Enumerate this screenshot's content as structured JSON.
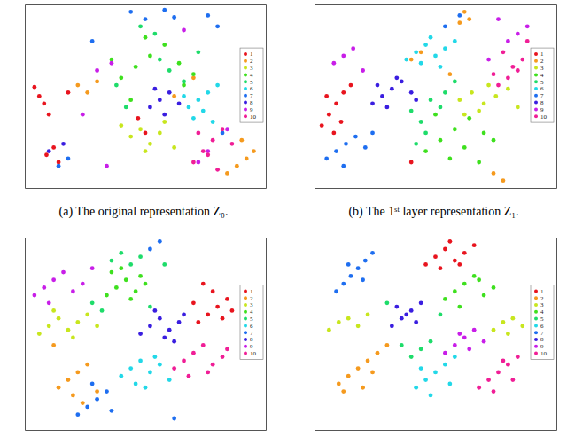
{
  "chart_data": [
    {
      "type": "scatter",
      "title": "(a) The original representation Z₀.",
      "xlim": [
        0,
        100
      ],
      "ylim": [
        0,
        100
      ],
      "tick_labels": false,
      "legend": "right",
      "series": [
        {
          "name": "1",
          "color": "#e8141e",
          "x": [
            4,
            6,
            8,
            10,
            12,
            9,
            14,
            47,
            50,
            18
          ],
          "values": [
            55,
            50,
            46,
            40,
            22,
            18,
            14,
            38,
            30,
            52
          ]
        },
        {
          "name": "2",
          "color": "#f59a1e",
          "x": [
            84,
            88,
            92,
            95,
            90,
            22,
            26,
            30,
            62,
            70
          ],
          "values": [
            8,
            12,
            16,
            20,
            26,
            56,
            52,
            58,
            50,
            60
          ]
        },
        {
          "name": "3",
          "color": "#c8e61e",
          "x": [
            44,
            48,
            52,
            56,
            50,
            58,
            62,
            40
          ],
          "values": [
            28,
            32,
            24,
            30,
            20,
            36,
            22,
            34
          ]
        },
        {
          "name": "4",
          "color": "#3ee01e",
          "x": [
            40,
            46,
            52,
            58,
            64,
            70,
            50,
            44,
            66,
            36
          ],
          "values": [
            60,
            66,
            72,
            78,
            68,
            62,
            82,
            48,
            56,
            70
          ]
        },
        {
          "name": "5",
          "color": "#1edc6a",
          "x": [
            48,
            54,
            60,
            66,
            38,
            42,
            72,
            56
          ],
          "values": [
            88,
            84,
            64,
            58,
            56,
            44,
            74,
            70
          ]
        },
        {
          "name": "6",
          "color": "#22d8e8",
          "x": [
            68,
            72,
            76,
            80,
            70,
            74,
            78,
            66
          ],
          "values": [
            44,
            48,
            52,
            56,
            38,
            42,
            36,
            50
          ]
        },
        {
          "name": "7",
          "color": "#1e6ef0",
          "x": [
            44,
            50,
            58,
            62,
            76,
            80,
            14,
            18,
            28,
            82
          ],
          "values": [
            96,
            92,
            97,
            93,
            94,
            88,
            12,
            16,
            80,
            30
          ]
        },
        {
          "name": "8",
          "color": "#3a1ee0",
          "x": [
            52,
            56,
            60,
            64,
            58,
            54,
            10,
            16
          ],
          "values": [
            44,
            48,
            52,
            46,
            40,
            54,
            20,
            24
          ]
        },
        {
          "name": "9",
          "color": "#c81ee8",
          "x": [
            30,
            36,
            84,
            72,
            76,
            24,
            66,
            34
          ],
          "values": [
            64,
            68,
            32,
            14,
            20,
            40,
            86,
            12
          ]
        },
        {
          "name": "10",
          "color": "#f01e96",
          "x": [
            70,
            74,
            78,
            82,
            72,
            80,
            76,
            86
          ],
          "values": [
            14,
            20,
            26,
            32,
            30,
            10,
            18,
            24
          ]
        }
      ]
    },
    {
      "type": "scatter",
      "title": "(b) The 1ˢᵗ layer representation Z₁.",
      "xlim": [
        0,
        100
      ],
      "ylim": [
        0,
        100
      ],
      "tick_labels": false,
      "legend": "right",
      "series": [
        {
          "name": "1",
          "color": "#e8141e",
          "x": [
            3,
            6,
            9,
            12,
            15,
            8,
            5,
            11,
            40
          ],
          "values": [
            34,
            40,
            46,
            52,
            56,
            30,
            50,
            36,
            14
          ]
        },
        {
          "name": "2",
          "color": "#f59a1e",
          "x": [
            60,
            62,
            64,
            40,
            44,
            78,
            74,
            56
          ],
          "values": [
            90,
            96,
            92,
            70,
            74,
            4,
            8,
            62
          ]
        },
        {
          "name": "3",
          "color": "#c8e61e",
          "x": [
            60,
            65,
            70,
            75,
            80,
            84,
            68,
            72,
            62
          ],
          "values": [
            48,
            52,
            46,
            50,
            54,
            44,
            42,
            56,
            40
          ]
        },
        {
          "name": "4",
          "color": "#3ee01e",
          "x": [
            46,
            52,
            58,
            64,
            70,
            56,
            62,
            50,
            68,
            74
          ],
          "values": [
            20,
            26,
            32,
            38,
            30,
            16,
            22,
            40,
            14,
            26
          ]
        },
        {
          "name": "5",
          "color": "#1edc6a",
          "x": [
            40,
            44,
            48,
            52,
            46,
            54,
            58,
            42
          ],
          "values": [
            42,
            36,
            48,
            44,
            30,
            52,
            58,
            24
          ]
        },
        {
          "name": "6",
          "color": "#22d8e8",
          "x": [
            38,
            42,
            46,
            50,
            54,
            58,
            44,
            52,
            48
          ],
          "values": [
            70,
            74,
            78,
            72,
            76,
            80,
            68,
            66,
            82
          ]
        },
        {
          "name": "7",
          "color": "#1e6ef0",
          "x": [
            5,
            9,
            13,
            17,
            21,
            24,
            60,
            54,
            12
          ],
          "values": [
            16,
            20,
            24,
            28,
            22,
            30,
            94,
            88,
            12
          ]
        },
        {
          "name": "8",
          "color": "#3a1ee0",
          "x": [
            24,
            28,
            32,
            36,
            40,
            42,
            30,
            34,
            26
          ],
          "values": [
            46,
            50,
            54,
            58,
            52,
            48,
            44,
            60,
            56
          ]
        },
        {
          "name": "9",
          "color": "#c81ee8",
          "x": [
            8,
            12,
            16,
            20,
            80,
            84,
            88,
            76,
            72
          ],
          "values": [
            68,
            72,
            76,
            64,
            80,
            84,
            88,
            92,
            70
          ]
        },
        {
          "name": "10",
          "color": "#f01e96",
          "x": [
            76,
            80,
            84,
            86,
            78,
            82,
            88,
            74
          ],
          "values": [
            56,
            60,
            64,
            70,
            74,
            66,
            80,
            62
          ]
        }
      ]
    },
    {
      "type": "scatter",
      "xlim": [
        0,
        100
      ],
      "ylim": [
        0,
        100
      ],
      "tick_labels": false,
      "legend": "right",
      "series": [
        {
          "name": "1",
          "color": "#e8141e",
          "x": [
            72,
            76,
            80,
            84,
            78,
            74,
            82,
            86,
            70
          ],
          "values": [
            56,
            60,
            64,
            68,
            72,
            76,
            58,
            62,
            66
          ]
        },
        {
          "name": "2",
          "color": "#f59a1e",
          "x": [
            14,
            18,
            22,
            26,
            30,
            20,
            12,
            24
          ],
          "values": [
            22,
            26,
            30,
            34,
            20,
            18,
            44,
            14
          ]
        },
        {
          "name": "3",
          "color": "#c8e61e",
          "x": [
            6,
            10,
            14,
            18,
            22,
            26,
            30,
            12,
            20
          ],
          "values": [
            50,
            54,
            58,
            52,
            56,
            60,
            54,
            62,
            48
          ]
        },
        {
          "name": "4",
          "color": "#3ee01e",
          "x": [
            34,
            38,
            42,
            46,
            50,
            36,
            44,
            48,
            40
          ],
          "values": [
            70,
            74,
            78,
            72,
            76,
            82,
            68,
            80,
            84
          ]
        },
        {
          "name": "5",
          "color": "#1edc6a",
          "x": [
            36,
            40,
            44,
            32,
            28,
            52,
            48,
            58
          ],
          "values": [
            88,
            92,
            86,
            62,
            66,
            64,
            90,
            86
          ]
        },
        {
          "name": "6",
          "color": "#22d8e8",
          "x": [
            40,
            44,
            48,
            52,
            56,
            60,
            46,
            54,
            50
          ],
          "values": [
            28,
            32,
            36,
            30,
            34,
            26,
            24,
            38,
            22
          ]
        },
        {
          "name": "7",
          "color": "#1e6ef0",
          "x": [
            22,
            26,
            30,
            34,
            28,
            36,
            52,
            56,
            62
          ],
          "values": [
            8,
            12,
            16,
            20,
            24,
            10,
            94,
            98,
            6
          ]
        },
        {
          "name": "8",
          "color": "#3a1ee0",
          "x": [
            48,
            52,
            56,
            60,
            64,
            54,
            58,
            66,
            62
          ],
          "values": [
            50,
            54,
            58,
            52,
            56,
            62,
            48,
            60,
            46
          ]
        },
        {
          "name": "9",
          "color": "#c81ee8",
          "x": [
            4,
            8,
            12,
            16,
            20,
            24,
            28,
            10
          ],
          "values": [
            70,
            74,
            78,
            82,
            72,
            76,
            84,
            66
          ]
        },
        {
          "name": "10",
          "color": "#f01e96",
          "x": [
            62,
            66,
            70,
            74,
            78,
            82,
            68,
            76,
            84
          ],
          "values": [
            32,
            36,
            40,
            44,
            34,
            38,
            28,
            30,
            42
          ]
        }
      ]
    },
    {
      "type": "scatter",
      "xlim": [
        0,
        100
      ],
      "ylim": [
        0,
        100
      ],
      "tick_labels": false,
      "legend": "right",
      "series": [
        {
          "name": "1",
          "color": "#e8141e",
          "x": [
            46,
            50,
            54,
            58,
            62,
            66,
            52,
            60,
            56
          ],
          "values": [
            86,
            90,
            94,
            88,
            92,
            96,
            84,
            86,
            98
          ]
        },
        {
          "name": "2",
          "color": "#f59a1e",
          "x": [
            10,
            14,
            18,
            22,
            26,
            30,
            12,
            20,
            24
          ],
          "values": [
            24,
            28,
            32,
            36,
            40,
            44,
            20,
            22,
            30
          ]
        },
        {
          "name": "3",
          "color": "#c8e61e",
          "x": [
            6,
            10,
            14,
            18,
            22,
            74,
            78,
            82,
            86,
            80
          ],
          "values": [
            52,
            56,
            58,
            54,
            60,
            52,
            56,
            58,
            54,
            50
          ]
        },
        {
          "name": "4",
          "color": "#3ee01e",
          "x": [
            54,
            58,
            62,
            66,
            70,
            74,
            60,
            68
          ],
          "values": [
            68,
            72,
            76,
            80,
            70,
            74,
            64,
            78
          ]
        },
        {
          "name": "5",
          "color": "#1edc6a",
          "x": [
            44,
            48,
            40,
            52,
            36,
            30
          ],
          "values": [
            42,
            46,
            38,
            60,
            44,
            66
          ]
        },
        {
          "name": "6",
          "color": "#22d8e8",
          "x": [
            42,
            46,
            50,
            54,
            58,
            48,
            56,
            44
          ],
          "values": [
            22,
            26,
            30,
            34,
            38,
            18,
            24,
            32
          ]
        },
        {
          "name": "7",
          "color": "#1e6ef0",
          "x": [
            9,
            12,
            15,
            18,
            21,
            24,
            14,
            20
          ],
          "values": [
            72,
            76,
            80,
            84,
            88,
            92,
            86,
            78
          ]
        },
        {
          "name": "8",
          "color": "#3a1ee0",
          "x": [
            32,
            36,
            40,
            44,
            38,
            42,
            34
          ],
          "values": [
            54,
            58,
            62,
            66,
            60,
            56,
            64
          ]
        },
        {
          "name": "9",
          "color": "#c81ee8",
          "x": [
            54,
            58,
            62,
            66,
            70,
            60,
            64
          ],
          "values": [
            40,
            44,
            48,
            52,
            46,
            50,
            42
          ]
        },
        {
          "name": "10",
          "color": "#f01e96",
          "x": [
            68,
            72,
            76,
            80,
            84,
            74,
            82,
            78
          ],
          "values": [
            22,
            26,
            30,
            34,
            38,
            20,
            26,
            36
          ]
        }
      ]
    }
  ]
}
